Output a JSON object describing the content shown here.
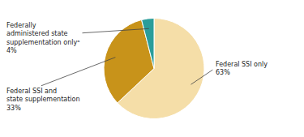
{
  "chart_data": {
    "type": "pie",
    "categories": [
      "Federal SSI only",
      "Federal SSI and\nstate supplementation",
      "Federally\nadministered state\nsupplementation onlyᵃ"
    ],
    "values": [
      63,
      33,
      4
    ],
    "value_labels": [
      "63%",
      "33%",
      "4%"
    ],
    "data_labels": true,
    "colors": [
      "#f5dea8",
      "#c8931a",
      "#2a9d9a"
    ]
  }
}
